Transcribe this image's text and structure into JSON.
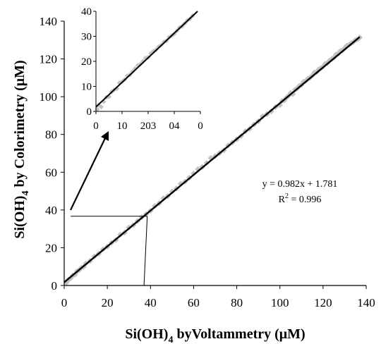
{
  "chart_data": [
    {
      "type": "scatter",
      "panel": "main",
      "xlabel": {
        "pre": "Si(OH)",
        "sub": "4",
        "post": " byVoltammetry (μM)"
      },
      "ylabel": {
        "pre": "Si(OH)",
        "sub": "4",
        "post": " by Colorimetry (μM)"
      },
      "xlim": [
        0,
        140
      ],
      "ylim": [
        0,
        145
      ],
      "x_ticks": [
        "0",
        "20",
        "40",
        "60",
        "80",
        "100",
        "120",
        "140"
      ],
      "y_ticks": [
        "0",
        "20",
        "40",
        "60",
        "80",
        "100",
        "120",
        "140"
      ],
      "fit": {
        "slope": 0.982,
        "intercept": 1.781
      },
      "annotation": {
        "equation": "y = 0.982x + 1.781",
        "r2_pre": "R",
        "r2_sup": "2",
        "r2_post": " = 0.996"
      },
      "guide_value": 37,
      "series": [
        {
          "marker_color": "#c2c2c2",
          "x": [
            1,
            2,
            3,
            4,
            5,
            6,
            7,
            8,
            9,
            10,
            12,
            14,
            16,
            18,
            20,
            22,
            24,
            26,
            28,
            30,
            32,
            34,
            36,
            38,
            40,
            42,
            44,
            46,
            48,
            50,
            52,
            54,
            56,
            58,
            60,
            62,
            64,
            66,
            68,
            70,
            72,
            74,
            76,
            78,
            80,
            82,
            84,
            86,
            88,
            90,
            92,
            94,
            96,
            98,
            100,
            101,
            102,
            103,
            104,
            105,
            106,
            107,
            108,
            109,
            110,
            111,
            112,
            113,
            114,
            115,
            116,
            117,
            118,
            119,
            120,
            121,
            122,
            123,
            124,
            125,
            126,
            127,
            128,
            129,
            130,
            131,
            132,
            133,
            134,
            135,
            136,
            137
          ],
          "y": [
            1.5,
            3.2,
            4.0,
            5.5,
            6.0,
            7.9,
            8.5,
            9.8,
            10.2,
            12.1,
            13.5,
            15.9,
            17.4,
            19.8,
            21.3,
            23.5,
            25.0,
            27.9,
            29.0,
            31.8,
            33.1,
            35.4,
            37.5,
            39.2,
            41.0,
            43.6,
            45.1,
            47.8,
            49.0,
            51.5,
            53.2,
            55.8,
            57.0,
            59.1,
            61.4,
            63.8,
            65.0,
            67.2,
            69.9,
            71.0,
            72.6,
            74.1,
            76.8,
            78.5,
            80.2,
            82.0,
            84.6,
            86.0,
            88.3,
            90.1,
            92.8,
            94.0,
            95.5,
            97.9,
            99.0,
            101.2,
            101.5,
            103.0,
            104.1,
            105.6,
            105.0,
            107.4,
            108.1,
            109.5,
            110.0,
            111.8,
            112.3,
            113.5,
            114.0,
            115.2,
            116.9,
            117.0,
            118.5,
            119.2,
            120.0,
            121.6,
            122.0,
            123.4,
            124.2,
            125.0,
            126.8,
            127.1,
            128.5,
            129.0,
            130.2,
            131.5,
            132.0,
            132.8,
            133.5,
            134.6,
            135.0,
            136.0
          ]
        }
      ]
    },
    {
      "type": "scatter",
      "panel": "inset",
      "xlim": [
        0,
        40
      ],
      "ylim": [
        0,
        40
      ],
      "x_ticks": [
        "0",
        "10",
        "203",
        "04",
        "0"
      ],
      "y_ticks": [
        "0",
        "10",
        "20",
        "30",
        "40"
      ],
      "fit": {
        "slope": 0.982,
        "intercept": 1.781
      },
      "series": [
        {
          "marker_color": "#c2c2c2",
          "x": [
            0.5,
            1,
            2,
            3,
            4,
            5,
            6,
            7,
            8,
            9,
            10,
            11,
            12,
            13,
            14,
            15,
            16,
            17,
            18,
            19,
            20,
            21,
            22,
            23,
            24,
            25,
            26,
            27,
            28,
            29,
            30,
            31,
            32,
            33,
            34,
            35,
            36,
            37
          ],
          "y": [
            0.8,
            2.5,
            1.8,
            3.9,
            5.6,
            5.9,
            7.8,
            8.6,
            9.1,
            11.4,
            11.8,
            12.7,
            14.2,
            14.6,
            15.9,
            17.1,
            18.4,
            18.9,
            20.0,
            21.3,
            21.6,
            23.1,
            24.0,
            24.6,
            25.8,
            26.5,
            27.7,
            28.2,
            29.6,
            30.3,
            31.0,
            32.2,
            33.5,
            34.0,
            35.1,
            36.3,
            37.0,
            38.2
          ]
        }
      ]
    }
  ]
}
